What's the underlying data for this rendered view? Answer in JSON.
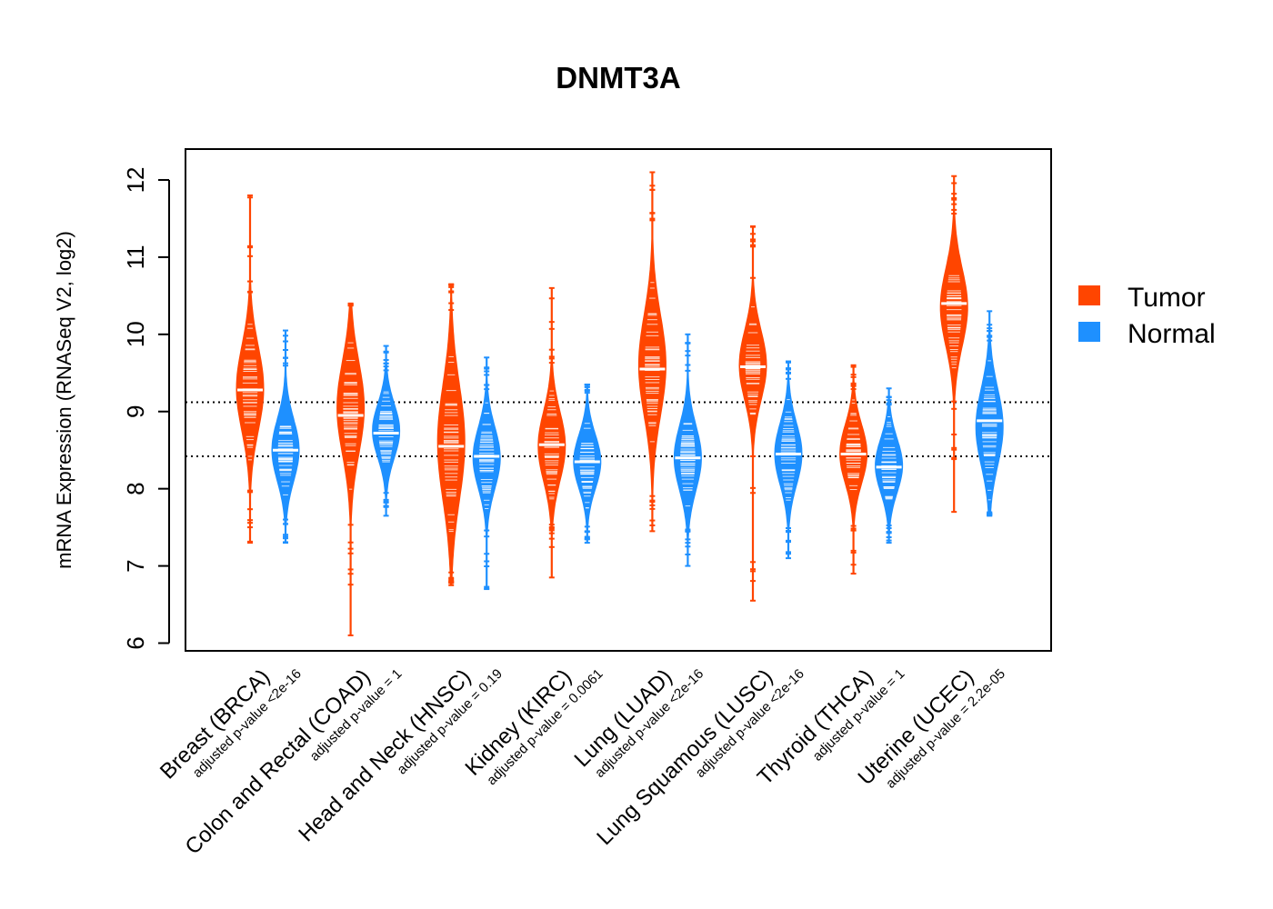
{
  "chart_data": {
    "type": "violin",
    "title": "DNMT3A",
    "ylabel": "mRNA Expression (RNASeq V2, log2)",
    "xlabel": "",
    "ylim": [
      5.9,
      12.4
    ],
    "yticks": [
      6,
      7,
      8,
      9,
      10,
      11,
      12
    ],
    "reference_lines": [
      9.12,
      8.42
    ],
    "legend": {
      "position": "right",
      "entries": [
        "Tumor",
        "Normal"
      ]
    },
    "colors": {
      "Tumor": "#ff4500",
      "Normal": "#1e90ff"
    },
    "categories": [
      {
        "label": "Breast (BRCA)",
        "pvalue": "adjusted p-value <2e-16"
      },
      {
        "label": "Colon and Rectal (COAD)",
        "pvalue": "adjusted p-value = 1"
      },
      {
        "label": "Head and Neck (HNSC)",
        "pvalue": "adjusted p-value = 0.19"
      },
      {
        "label": "Kidney (KIRC)",
        "pvalue": "adjusted p-value = 0.0061"
      },
      {
        "label": "Lung (LUAD)",
        "pvalue": "adjusted p-value <2e-16"
      },
      {
        "label": "Lung Squamous (LUSC)",
        "pvalue": "adjusted p-value <2e-16"
      },
      {
        "label": "Thyroid (THCA)",
        "pvalue": "adjusted p-value = 1"
      },
      {
        "label": "Uterine (UCEC)",
        "pvalue": "adjusted p-value = 2.2e-05"
      }
    ],
    "series": [
      {
        "name": "Tumor",
        "distributions": [
          {
            "min": 7.3,
            "max": 11.8,
            "median": 9.28,
            "mode": 9.3,
            "sd": 0.55
          },
          {
            "min": 6.1,
            "max": 10.4,
            "median": 8.95,
            "mode": 9.05,
            "sd": 0.6
          },
          {
            "min": 6.75,
            "max": 10.65,
            "median": 8.55,
            "mode": 8.6,
            "sd": 0.75
          },
          {
            "min": 6.85,
            "max": 10.6,
            "median": 8.57,
            "mode": 8.55,
            "sd": 0.45
          },
          {
            "min": 7.45,
            "max": 12.1,
            "median": 9.55,
            "mode": 9.6,
            "sd": 0.65
          },
          {
            "min": 6.55,
            "max": 11.4,
            "median": 9.58,
            "mode": 9.6,
            "sd": 0.45
          },
          {
            "min": 6.9,
            "max": 9.6,
            "median": 8.45,
            "mode": 8.45,
            "sd": 0.38
          },
          {
            "min": 7.7,
            "max": 12.05,
            "median": 10.4,
            "mode": 10.35,
            "sd": 0.5
          }
        ]
      },
      {
        "name": "Normal",
        "distributions": [
          {
            "min": 7.3,
            "max": 10.05,
            "median": 8.5,
            "mode": 8.5,
            "sd": 0.4
          },
          {
            "min": 7.65,
            "max": 9.85,
            "median": 8.72,
            "mode": 8.75,
            "sd": 0.35
          },
          {
            "min": 6.7,
            "max": 9.7,
            "median": 8.42,
            "mode": 8.4,
            "sd": 0.4
          },
          {
            "min": 7.3,
            "max": 9.35,
            "median": 8.35,
            "mode": 8.35,
            "sd": 0.35
          },
          {
            "min": 7.0,
            "max": 10.0,
            "median": 8.4,
            "mode": 8.4,
            "sd": 0.42
          },
          {
            "min": 7.1,
            "max": 9.65,
            "median": 8.45,
            "mode": 8.45,
            "sd": 0.4
          },
          {
            "min": 7.3,
            "max": 9.3,
            "median": 8.28,
            "mode": 8.3,
            "sd": 0.35
          },
          {
            "min": 7.65,
            "max": 10.3,
            "median": 8.88,
            "mode": 8.8,
            "sd": 0.5
          }
        ]
      }
    ]
  }
}
